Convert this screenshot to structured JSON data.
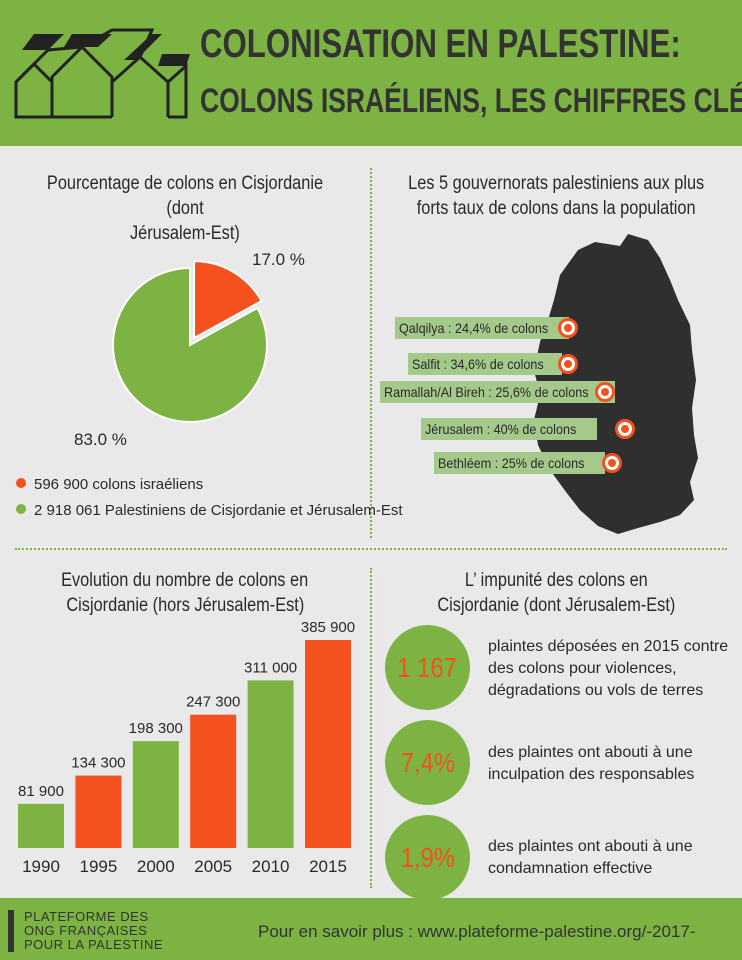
{
  "header": {
    "title_line1": "COLONISATION EN PALESTINE:",
    "title_line2": "COLONS ISRAÉLIENS, LES CHIFFRES CLÉS"
  },
  "pie_section": {
    "title_line1": "Pourcentage de colons en Cisjordanie (dont",
    "title_line2": "Jérusalem-Est)",
    "legend": [
      {
        "label": "596 900 colons israéliens",
        "color": "#f4511e"
      },
      {
        "label": "2 918 061 Palestiniens de Cisjordanie et Jérusalem-Est",
        "color": "#7cb342"
      }
    ]
  },
  "map_section": {
    "title_line1": "Les 5 gouvernorats palestiniens aux plus",
    "title_line2": "forts taux de colons dans la population",
    "governorates": [
      {
        "label": "Qalqilya : 24,4% de colons"
      },
      {
        "label": "Salfit : 34,6% de colons"
      },
      {
        "label": "Ramallah/Al Bireh : 25,6% de colons"
      },
      {
        "label": "Jérusalem : 40% de colons"
      },
      {
        "label": "Bethléem : 25% de colons"
      }
    ]
  },
  "bar_section": {
    "title_line1": "Evolution du nombre de colons en",
    "title_line2": "Cisjordanie (hors Jérusalem-Est)"
  },
  "impunity_section": {
    "title_line1": "L’ impunité des colons en",
    "title_line2": "Cisjordanie (dont Jérusalem-Est)",
    "stats": [
      {
        "value": "1 167",
        "desc_lines": [
          "plaintes déposées en 2015 contre",
          "des colons pour violences,",
          "dégradations ou vols de terres"
        ]
      },
      {
        "value": "7,4%",
        "desc_lines": [
          "des plaintes ont abouti à une",
          "inculpation des responsables"
        ]
      },
      {
        "value": "1,9%",
        "desc_lines": [
          "des plaintes ont abouti à une",
          "condamnation effective"
        ]
      }
    ]
  },
  "footer": {
    "org_lines": [
      "PLATEFORME DES",
      "ONG FRANÇAISES",
      "POUR LA PALESTINE"
    ],
    "more": "Pour en savoir plus : www.plateforme-palestine.org/-2017-"
  },
  "colors": {
    "green": "#7cb342",
    "orange": "#f4511e",
    "dark": "#333333"
  },
  "chart_data": [
    {
      "type": "pie",
      "title": "Pourcentage de colons en Cisjordanie (dont Jérusalem-Est)",
      "slices": [
        {
          "label": "596 900 colons israéliens",
          "value": 17.0,
          "display": "17.0 %",
          "color": "#f4511e"
        },
        {
          "label": "2 918 061 Palestiniens de Cisjordanie et Jérusalem-Est",
          "value": 83.0,
          "display": "83.0 %",
          "color": "#7cb342"
        }
      ]
    },
    {
      "type": "bar",
      "title": "Evolution du nombre de colons en Cisjordanie (hors Jérusalem-Est)",
      "categories": [
        "1990",
        "1995",
        "2000",
        "2005",
        "2010",
        "2015"
      ],
      "values": [
        81900,
        134300,
        198300,
        247300,
        311000,
        385900
      ],
      "labels": [
        "81 900",
        "134 300",
        "198 300",
        "247 300",
        "311 000",
        "385 900"
      ],
      "colors": [
        "#7cb342",
        "#f4511e",
        "#7cb342",
        "#f4511e",
        "#7cb342",
        "#f4511e"
      ],
      "xlabel": "",
      "ylabel": "",
      "ylim": [
        0,
        385900
      ]
    }
  ]
}
